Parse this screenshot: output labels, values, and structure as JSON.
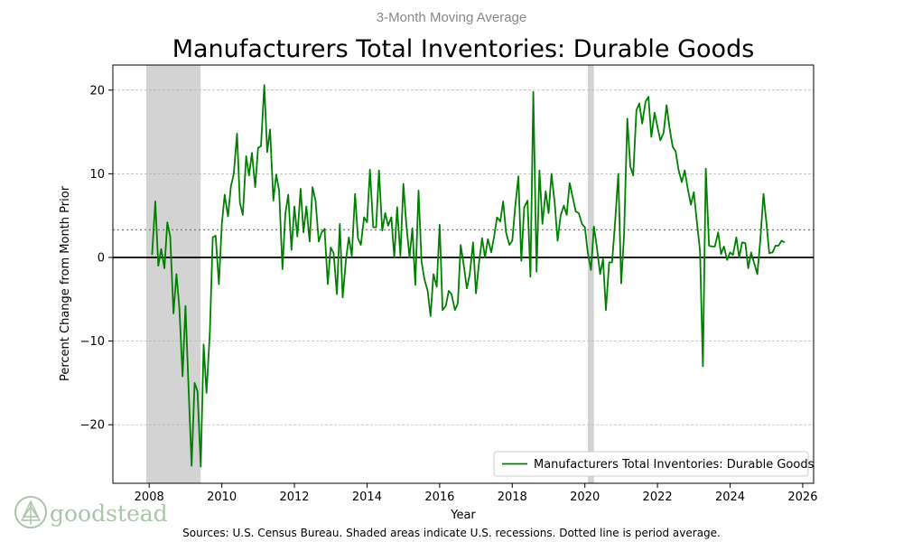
{
  "colors": {
    "series": "#008000",
    "recession": "#d3d3d3",
    "grid": "#b0b0b0",
    "average": "#808080",
    "logo": "#a9c6a9"
  },
  "logo": {
    "text": "goodstead",
    "icon": "pine-tree-icon"
  },
  "footer": {
    "source": "Sources: U.S. Census Bureau. Shaded areas indicate U.S. recessions. Dotted line is period average."
  },
  "chart_data": {
    "type": "line",
    "title": "Manufacturers Total Inventories: Durable Goods",
    "subtitle": "3-Month Moving Average",
    "xlabel": "Year",
    "ylabel": "Percent Change from Month Prior",
    "xlim": [
      2007.0,
      2026.3
    ],
    "ylim": [
      -27.0,
      23.0
    ],
    "xticks": [
      2008,
      2010,
      2012,
      2014,
      2016,
      2018,
      2020,
      2022,
      2024,
      2026
    ],
    "yticks": [
      20,
      10,
      0,
      -10,
      -20
    ],
    "ytick_labels": [
      "20",
      "10",
      "0",
      "−10",
      "−20"
    ],
    "grid": "horizontal dashed",
    "average": 3.3,
    "legend": {
      "position": "bottom-right",
      "label": "Manufacturers Total Inventories: Durable Goods"
    },
    "recessions": [
      [
        2007.917,
        2009.417
      ],
      [
        2020.083,
        2020.25
      ]
    ],
    "series": [
      {
        "name": "Manufacturers Total Inventories: Durable Goods",
        "x": [
          2008.08,
          2008.17,
          2008.25,
          2008.33,
          2008.42,
          2008.5,
          2008.58,
          2008.67,
          2008.75,
          2008.83,
          2008.92,
          2009.0,
          2009.08,
          2009.17,
          2009.25,
          2009.33,
          2009.42,
          2009.5,
          2009.58,
          2009.67,
          2009.75,
          2009.83,
          2009.92,
          2010.0,
          2010.08,
          2010.17,
          2010.25,
          2010.33,
          2010.42,
          2010.5,
          2010.58,
          2010.67,
          2010.75,
          2010.83,
          2010.92,
          2011.0,
          2011.08,
          2011.17,
          2011.25,
          2011.33,
          2011.42,
          2011.5,
          2011.58,
          2011.67,
          2011.75,
          2011.83,
          2011.92,
          2012.0,
          2012.08,
          2012.17,
          2012.25,
          2012.33,
          2012.42,
          2012.5,
          2012.58,
          2012.67,
          2012.75,
          2012.83,
          2012.92,
          2013.0,
          2013.08,
          2013.17,
          2013.25,
          2013.33,
          2013.42,
          2013.5,
          2013.58,
          2013.67,
          2013.75,
          2013.83,
          2013.92,
          2014.0,
          2014.08,
          2014.17,
          2014.25,
          2014.33,
          2014.42,
          2014.5,
          2014.58,
          2014.67,
          2014.75,
          2014.83,
          2014.92,
          2015.0,
          2015.08,
          2015.17,
          2015.25,
          2015.33,
          2015.42,
          2015.5,
          2015.58,
          2015.67,
          2015.75,
          2015.83,
          2015.92,
          2016.0,
          2016.08,
          2016.17,
          2016.25,
          2016.33,
          2016.42,
          2016.5,
          2016.58,
          2016.67,
          2016.75,
          2016.83,
          2016.92,
          2017.0,
          2017.08,
          2017.17,
          2017.25,
          2017.33,
          2017.42,
          2017.5,
          2017.58,
          2017.67,
          2017.75,
          2017.83,
          2017.92,
          2018.0,
          2018.08,
          2018.17,
          2018.25,
          2018.33,
          2018.42,
          2018.5,
          2018.58,
          2018.67,
          2018.75,
          2018.83,
          2018.92,
          2019.0,
          2019.08,
          2019.17,
          2019.25,
          2019.33,
          2019.42,
          2019.5,
          2019.58,
          2019.67,
          2019.75,
          2019.83,
          2019.92,
          2020.0,
          2020.08,
          2020.17,
          2020.25,
          2020.33,
          2020.42,
          2020.5,
          2020.58,
          2020.67,
          2020.75,
          2020.83,
          2020.92,
          2021.0,
          2021.08,
          2021.17,
          2021.25,
          2021.33,
          2021.42,
          2021.5,
          2021.58,
          2021.67,
          2021.75,
          2021.83,
          2021.92,
          2022.0,
          2022.08,
          2022.17,
          2022.25,
          2022.33,
          2022.42,
          2022.5,
          2022.58,
          2022.67,
          2022.75,
          2022.83,
          2022.92,
          2023.0,
          2023.08,
          2023.17,
          2023.25,
          2023.33,
          2023.42,
          2023.5,
          2023.58,
          2023.67,
          2023.75,
          2023.83,
          2023.92,
          2024.0,
          2024.08,
          2024.17,
          2024.25,
          2024.33,
          2024.42,
          2024.5,
          2024.58,
          2024.67,
          2024.75,
          2024.83,
          2024.92,
          2025.0,
          2025.08,
          2025.17,
          2025.25,
          2025.33,
          2025.42,
          2025.5
        ],
        "y": [
          0.3,
          6.7,
          -1.0,
          1.0,
          -1.3,
          4.2,
          2.5,
          -6.7,
          -2.0,
          -6.0,
          -14.2,
          -5.8,
          -15.0,
          -24.9,
          -15.0,
          -16.0,
          -25.0,
          -10.4,
          -16.2,
          -9.0,
          2.4,
          2.6,
          -3.2,
          3.9,
          7.5,
          4.9,
          8.5,
          10.0,
          14.8,
          6.5,
          5.1,
          12.1,
          9.8,
          12.5,
          8.4,
          13.1,
          13.3,
          20.6,
          12.6,
          15.3,
          6.8,
          9.9,
          8.0,
          -1.4,
          5.2,
          7.5,
          0.9,
          6.1,
          2.5,
          8.2,
          3.0,
          6.1,
          1.9,
          8.4,
          6.8,
          1.9,
          3.0,
          3.4,
          -3.2,
          1.2,
          0.5,
          -4.4,
          4.0,
          -4.8,
          -0.3,
          2.4,
          0.2,
          7.6,
          2.3,
          1.5,
          4.8,
          4.2,
          10.5,
          3.6,
          3.6,
          10.4,
          3.2,
          5.3,
          3.8,
          4.8,
          0.0,
          6.0,
          0.2,
          8.8,
          4.0,
          0.0,
          3.5,
          -3.3,
          8.0,
          -0.5,
          -2.6,
          -4.0,
          -7.0,
          -2.0,
          -3.5,
          3.9,
          -6.3,
          -5.8,
          -4.0,
          -4.4,
          -6.3,
          -5.5,
          1.5,
          -1.1,
          -3.7,
          -2.0,
          1.8,
          -4.3,
          -0.8,
          2.3,
          0.0,
          2.2,
          0.6,
          2.5,
          4.8,
          4.3,
          6.7,
          3.0,
          1.5,
          2.0,
          6.0,
          9.7,
          -0.4,
          6.0,
          6.8,
          -2.3,
          19.8,
          -1.7,
          10.4,
          4.0,
          7.9,
          5.3,
          10.0,
          6.5,
          2.0,
          5.0,
          6.2,
          5.1,
          8.9,
          7.1,
          5.5,
          5.3,
          4.0,
          3.6,
          0.6,
          -1.5,
          3.7,
          1.2,
          -2.0,
          -0.2,
          -6.3,
          -0.6,
          -0.6,
          4.1,
          10.0,
          -3.1,
          2.7,
          16.6,
          10.9,
          9.8,
          17.6,
          18.4,
          16.0,
          18.6,
          19.2,
          14.4,
          17.3,
          15.6,
          14.0,
          14.9,
          18.2,
          15.5,
          13.2,
          12.7,
          10.5,
          9.0,
          10.4,
          8.3,
          6.3,
          7.8,
          4.5,
          0.8,
          -13.0,
          10.6,
          1.4,
          1.3,
          1.3,
          3.0,
          0.4,
          1.3,
          -0.3,
          0.6,
          0.3,
          2.4,
          0.0,
          1.8,
          1.7,
          -1.3,
          0.6,
          -0.8,
          -2.0,
          2.0,
          7.6,
          4.2,
          0.5,
          0.6,
          1.4,
          1.4,
          2.0,
          1.8
        ]
      }
    ]
  }
}
